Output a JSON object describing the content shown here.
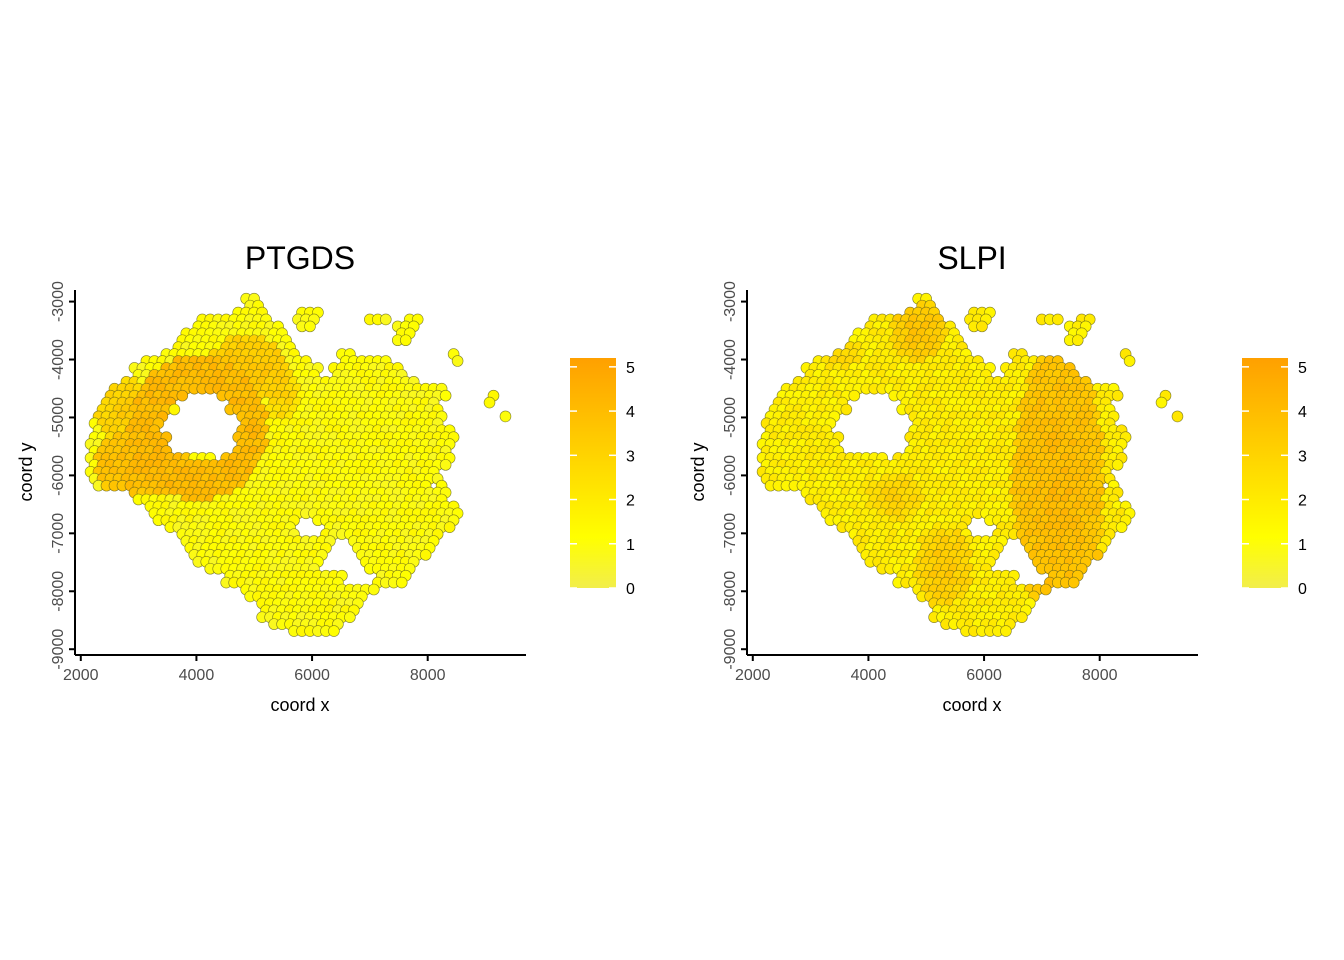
{
  "chart_data": [
    {
      "type": "scatter",
      "title": "PTGDS",
      "xlabel": "coord x",
      "ylabel": "coord y",
      "xlim": [
        1900,
        9700
      ],
      "ylim": [
        -9100,
        -2800
      ],
      "xticks": [
        2000,
        4000,
        6000,
        8000
      ],
      "yticks": [
        -9000,
        -8000,
        -7000,
        -6000,
        -5000,
        -4000,
        -3000
      ],
      "grid": false,
      "legend": {
        "placement": "right",
        "min": 0,
        "max": 5.2,
        "ticks": [
          0,
          1,
          2,
          3,
          4,
          5
        ],
        "colors": [
          "#f2ee4b",
          "#ffff00",
          "#ffa500"
        ]
      },
      "spot_diameter": 190,
      "tissue_bounds": {
        "ymax": -2950,
        "ymin": -8750,
        "rows": [
          [
            -3000,
            [
              [
                4850,
                5050
              ]
            ]
          ],
          [
            -3150,
            [
              [
                4700,
                5200
              ],
              [
                5800,
                6100
              ]
            ]
          ],
          [
            -3300,
            [
              [
                4100,
                5300
              ],
              [
                5750,
                6050
              ],
              [
                6950,
                7250
              ],
              [
                7700,
                7800
              ]
            ]
          ],
          [
            -3450,
            [
              [
                3950,
                5450
              ],
              [
                5850,
                5950
              ],
              [
                7450,
                7800
              ]
            ]
          ],
          [
            -3600,
            [
              [
                3750,
                5550
              ],
              [
                7450,
                7700
              ]
            ]
          ],
          [
            -3750,
            [
              [
                3600,
                5650
              ]
            ]
          ],
          [
            -3900,
            [
              [
                3450,
                5750
              ],
              [
                6500,
                6700
              ],
              [
                8400,
                8450
              ]
            ]
          ],
          [
            -4050,
            [
              [
                3100,
                5900
              ],
              [
                6500,
                7250
              ],
              [
                8500,
                8500
              ]
            ]
          ],
          [
            -4200,
            [
              [
                2900,
                6100
              ],
              [
                6400,
                7550
              ]
            ]
          ],
          [
            -4350,
            [
              [
                2750,
                7850
              ]
            ]
          ],
          [
            -4500,
            [
              [
                2550,
                8250
              ]
            ]
          ],
          [
            -4650,
            [
              [
                2450,
                3750
              ],
              [
                4450,
                8350
              ],
              [
                9100,
                9150
              ]
            ]
          ],
          [
            -4800,
            [
              [
                2350,
                3600
              ],
              [
                4600,
                8200
              ],
              [
                9050,
                9050
              ]
            ]
          ],
          [
            -4950,
            [
              [
                2250,
                3450
              ],
              [
                4750,
                8300
              ],
              [
                9300,
                9350
              ]
            ]
          ],
          [
            -5100,
            [
              [
                2250,
                3400
              ],
              [
                4800,
                8250
              ],
              [
                9100,
                9100
              ],
              [
                9450,
                9450
              ]
            ]
          ],
          [
            -5250,
            [
              [
                2200,
                3350
              ],
              [
                4800,
                8400
              ]
            ]
          ],
          [
            -5400,
            [
              [
                2150,
                3450
              ],
              [
                4750,
                8450
              ]
            ]
          ],
          [
            -5550,
            [
              [
                2150,
                3550
              ],
              [
                4650,
                8400
              ]
            ]
          ],
          [
            -5700,
            [
              [
                2150,
                4300
              ],
              [
                4500,
                8400
              ]
            ]
          ],
          [
            -5850,
            [
              [
                2200,
                8350
              ]
            ]
          ],
          [
            -6000,
            [
              [
                2150,
                8150
              ]
            ]
          ],
          [
            -6150,
            [
              [
                2200,
                7950
              ],
              [
                8150,
                8300
              ]
            ]
          ],
          [
            -6300,
            [
              [
                2950,
                8400
              ]
            ]
          ],
          [
            -6450,
            [
              [
                3000,
                8250
              ]
            ]
          ],
          [
            -6600,
            [
              [
                3200,
                8550
              ]
            ]
          ],
          [
            -6750,
            [
              [
                3300,
                5700
              ],
              [
                6100,
                8450
              ]
            ]
          ],
          [
            -6900,
            [
              [
                3550,
                5600
              ],
              [
                6250,
                8350
              ]
            ]
          ],
          [
            -7050,
            [
              [
                3700,
                5700
              ],
              [
                6200,
                8200
              ]
            ]
          ],
          [
            -7200,
            [
              [
                3850,
                6300
              ],
              [
                6700,
                8100
              ]
            ]
          ],
          [
            -7350,
            [
              [
                3900,
                6250
              ],
              [
                6850,
                7950
              ]
            ]
          ],
          [
            -7500,
            [
              [
                4050,
                6200
              ],
              [
                6950,
                7850
              ]
            ]
          ],
          [
            -7650,
            [
              [
                4250,
                6100
              ],
              [
                7000,
                7750
              ]
            ]
          ],
          [
            -7800,
            [
              [
                4500,
                6550
              ],
              [
                7150,
                7650
              ]
            ]
          ],
          [
            -7950,
            [
              [
                4850,
                7050
              ]
            ]
          ],
          [
            -8100,
            [
              [
                4950,
                6850
              ]
            ]
          ],
          [
            -8250,
            [
              [
                5050,
                6800
              ]
            ]
          ],
          [
            -8400,
            [
              [
                5100,
                6700
              ]
            ]
          ],
          [
            -8550,
            [
              [
                5350,
                6550
              ]
            ]
          ],
          [
            -8700,
            [
              [
                5600,
                6350
              ]
            ]
          ]
        ]
      },
      "expression_regions": [
        {
          "shape": "ring",
          "cx": 4050,
          "cy": -5200,
          "rx": 1200,
          "ry": 1250,
          "width": 650,
          "level": 4.3
        },
        {
          "shape": "ellipse",
          "cx": 3100,
          "cy": -5800,
          "rx": 850,
          "ry": 600,
          "level": 4.6
        },
        {
          "shape": "ellipse",
          "cx": 4900,
          "cy": -4200,
          "rx": 700,
          "ry": 600,
          "level": 4.0
        },
        {
          "shape": "ellipse",
          "cx": 2800,
          "cy": -4900,
          "rx": 600,
          "ry": 550,
          "level": 3.6
        },
        {
          "shape": "ellipse",
          "cx": 5500,
          "cy": -4600,
          "rx": 300,
          "ry": 500,
          "level": 3.3
        }
      ],
      "background_level": 1.1
    },
    {
      "type": "scatter",
      "title": "SLPI",
      "xlabel": "coord x",
      "ylabel": "coord y",
      "xlim": [
        1900,
        9700
      ],
      "ylim": [
        -9100,
        -2800
      ],
      "xticks": [
        2000,
        4000,
        6000,
        8000
      ],
      "yticks": [
        -9000,
        -8000,
        -7000,
        -6000,
        -5000,
        -4000,
        -3000
      ],
      "grid": false,
      "legend": {
        "placement": "right",
        "min": 0,
        "max": 5.2,
        "ticks": [
          0,
          1,
          2,
          3,
          4,
          5
        ],
        "colors": [
          "#f2ee4b",
          "#ffff00",
          "#ffa500"
        ]
      },
      "spot_diameter": 190,
      "expression_regions": [
        {
          "shape": "ellipse",
          "cx": 7300,
          "cy": -6200,
          "rx": 800,
          "ry": 2400,
          "level": 4.5
        },
        {
          "shape": "ellipse",
          "cx": 4900,
          "cy": -3500,
          "rx": 500,
          "ry": 550,
          "level": 4.0
        },
        {
          "shape": "ellipse",
          "cx": 5300,
          "cy": -7600,
          "rx": 500,
          "ry": 700,
          "level": 3.8
        },
        {
          "shape": "ellipse",
          "cx": 4500,
          "cy": -6400,
          "rx": 500,
          "ry": 400,
          "level": 3.4
        },
        {
          "shape": "ellipse",
          "cx": 3500,
          "cy": -3900,
          "rx": 400,
          "ry": 300,
          "level": 3.2
        }
      ],
      "background_level": 1.9
    }
  ]
}
